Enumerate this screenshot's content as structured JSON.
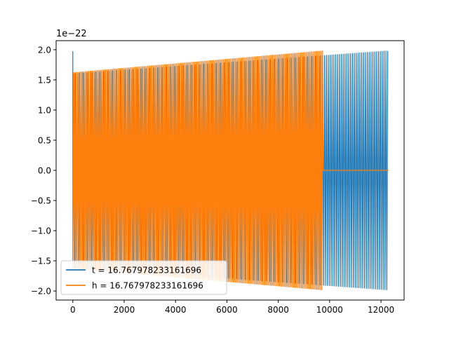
{
  "chart_data": {
    "type": "line",
    "title": "",
    "xlabel": "",
    "ylabel": "",
    "y_offset_label": "1e−22",
    "y_scale": 1e-22,
    "xlim": [
      -650,
      12900
    ],
    "ylim": [
      -2.15,
      2.15
    ],
    "x_ticks": [
      0,
      2000,
      4000,
      6000,
      8000,
      10000,
      12000
    ],
    "x_tick_labels": [
      "0",
      "2000",
      "4000",
      "6000",
      "8000",
      "10000",
      "12000"
    ],
    "y_ticks": [
      -2.0,
      -1.5,
      -1.0,
      -0.5,
      0.0,
      0.5,
      1.0,
      1.5,
      2.0
    ],
    "y_tick_labels": [
      "−2.0",
      "−1.5",
      "−1.0",
      "−0.5",
      "0.0",
      "0.5",
      "1.0",
      "1.5",
      "2.0"
    ],
    "grid": false,
    "legend_position": "lower-left",
    "series": [
      {
        "name": "t = 16.767978233161696",
        "color": "#1f77b4",
        "x_range": [
          0,
          12300
        ],
        "cycles": 170,
        "envelope_start": 1.6,
        "envelope_end": 1.98,
        "initial_spike": 1.97
      },
      {
        "name": "h = 16.767978233161696",
        "color": "#ff7f0e",
        "x_range": [
          0,
          9750
        ],
        "cycles": 195,
        "envelope_start": 1.62,
        "envelope_end": 1.98,
        "tail_end": 12300,
        "tail_value": 0.0
      }
    ]
  }
}
